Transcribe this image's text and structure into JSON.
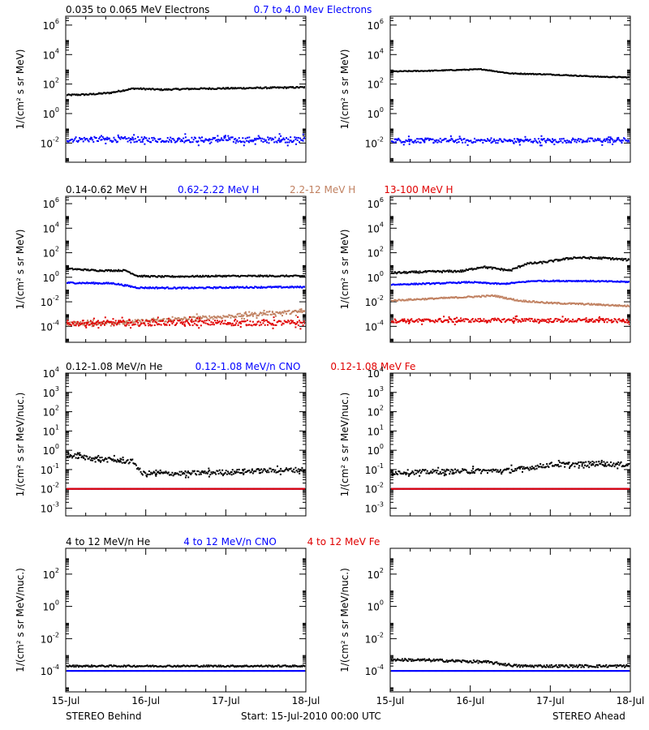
{
  "chart_data": [
    {
      "type": "scatter",
      "panel": "electrons-behind",
      "title_series": [
        {
          "name": "0.035 to 0.065 MeV Electrons",
          "color": "#000000"
        },
        {
          "name": "0.7 to 4.0 Mev Electrons",
          "color": "#0000ff"
        }
      ],
      "ylabel": "1/(cm² s sr MeV)",
      "yscale": "log",
      "ylim_exp": [
        -3.3,
        6.6
      ],
      "ytick_exps": [
        -2,
        0,
        2,
        4,
        6
      ],
      "series": [
        {
          "name": "0.035 to 0.065 MeV Electrons",
          "color": "#000000",
          "scatter": 0.05,
          "points": [
            [
              0,
              1.25
            ],
            [
              0.3,
              1.3
            ],
            [
              0.55,
              1.4
            ],
            [
              0.85,
              1.7
            ],
            [
              1.2,
              1.62
            ],
            [
              1.6,
              1.68
            ],
            [
              2.2,
              1.72
            ],
            [
              2.6,
              1.75
            ],
            [
              3.0,
              1.78
            ]
          ]
        },
        {
          "name": "0.7 to 4.0 Mev Electrons",
          "color": "#0000ff",
          "scatter": 0.18,
          "points": [
            [
              0,
              -1.75
            ],
            [
              1.5,
              -1.78
            ],
            [
              3.0,
              -1.78
            ]
          ]
        }
      ]
    },
    {
      "type": "scatter",
      "panel": "electrons-ahead",
      "ylabel": "1/(cm² s sr MeV)",
      "yscale": "log",
      "ylim_exp": [
        -3.3,
        6.6
      ],
      "ytick_exps": [
        -2,
        0,
        2,
        4,
        6
      ],
      "series": [
        {
          "name": "0.035 to 0.065 MeV Electrons",
          "color": "#000000",
          "scatter": 0.03,
          "points": [
            [
              0,
              2.85
            ],
            [
              0.5,
              2.9
            ],
            [
              0.8,
              2.95
            ],
            [
              1.15,
              3.0
            ],
            [
              1.5,
              2.72
            ],
            [
              2.0,
              2.65
            ],
            [
              2.6,
              2.5
            ],
            [
              3.0,
              2.45
            ]
          ]
        },
        {
          "name": "0.7 to 4.0 Mev Electrons",
          "color": "#0000ff",
          "scatter": 0.15,
          "points": [
            [
              0,
              -1.82
            ],
            [
              1.5,
              -1.85
            ],
            [
              3.0,
              -1.8
            ]
          ]
        }
      ]
    },
    {
      "type": "scatter",
      "panel": "protons-behind",
      "title_series": [
        {
          "name": "0.14-0.62 MeV H",
          "color": "#000000"
        },
        {
          "name": "0.62-2.22 MeV H",
          "color": "#0000ff"
        },
        {
          "name": "2.2-12 MeV H",
          "color": "#c08060"
        },
        {
          "name": "13-100 MeV H",
          "color": "#e00000"
        }
      ],
      "ylabel": "1/(cm² s sr MeV)",
      "yscale": "log",
      "ylim_exp": [
        -5.3,
        6.6
      ],
      "ytick_exps": [
        -4,
        -2,
        0,
        2,
        4,
        6
      ],
      "series": [
        {
          "name": "0.14-0.62 MeV H",
          "color": "#000000",
          "scatter": 0.06,
          "points": [
            [
              0,
              0.7
            ],
            [
              0.4,
              0.55
            ],
            [
              0.75,
              0.55
            ],
            [
              0.9,
              0.1
            ],
            [
              1.2,
              0.05
            ],
            [
              2.0,
              0.1
            ],
            [
              3.0,
              0.1
            ]
          ]
        },
        {
          "name": "0.62-2.22 MeV H",
          "color": "#0000ff",
          "scatter": 0.06,
          "points": [
            [
              0,
              -0.45
            ],
            [
              0.6,
              -0.5
            ],
            [
              0.9,
              -0.85
            ],
            [
              1.5,
              -0.88
            ],
            [
              2.2,
              -0.82
            ],
            [
              3.0,
              -0.8
            ]
          ]
        },
        {
          "name": "2.2-12 MeV H",
          "color": "#c08060",
          "scatter": 0.15,
          "points": [
            [
              0,
              -3.8
            ],
            [
              0.6,
              -3.7
            ],
            [
              1.2,
              -3.5
            ],
            [
              2.0,
              -3.2
            ],
            [
              2.6,
              -2.9
            ],
            [
              3.0,
              -2.8
            ]
          ]
        },
        {
          "name": "13-100 MeV H",
          "color": "#e00000",
          "scatter": 0.22,
          "points": [
            [
              0,
              -3.75
            ],
            [
              1.5,
              -3.72
            ],
            [
              3.0,
              -3.72
            ]
          ]
        }
      ]
    },
    {
      "type": "scatter",
      "panel": "protons-ahead",
      "ylabel": "1/(cm² s sr MeV)",
      "yscale": "log",
      "ylim_exp": [
        -5.3,
        6.6
      ],
      "ytick_exps": [
        -4,
        -2,
        0,
        2,
        4,
        6
      ],
      "series": [
        {
          "name": "0.14-0.62 MeV H",
          "color": "#000000",
          "scatter": 0.08,
          "points": [
            [
              0,
              0.35
            ],
            [
              0.5,
              0.45
            ],
            [
              0.9,
              0.5
            ],
            [
              1.15,
              0.85
            ],
            [
              1.5,
              0.55
            ],
            [
              1.7,
              1.1
            ],
            [
              1.9,
              1.2
            ],
            [
              2.3,
              1.6
            ],
            [
              2.7,
              1.55
            ],
            [
              3.0,
              1.4
            ]
          ]
        },
        {
          "name": "0.62-2.22 MeV H",
          "color": "#0000ff",
          "scatter": 0.05,
          "points": [
            [
              0,
              -0.6
            ],
            [
              0.6,
              -0.5
            ],
            [
              1.0,
              -0.4
            ],
            [
              1.4,
              -0.55
            ],
            [
              1.8,
              -0.3
            ],
            [
              2.4,
              -0.3
            ],
            [
              3.0,
              -0.38
            ]
          ]
        },
        {
          "name": "2.2-12 MeV H",
          "color": "#c08060",
          "scatter": 0.06,
          "points": [
            [
              0,
              -1.9
            ],
            [
              0.5,
              -1.75
            ],
            [
              1.0,
              -1.6
            ],
            [
              1.3,
              -1.5
            ],
            [
              1.6,
              -1.9
            ],
            [
              2.0,
              -2.1
            ],
            [
              2.5,
              -2.2
            ],
            [
              3.0,
              -2.35
            ]
          ]
        },
        {
          "name": "13-100 MeV H",
          "color": "#e00000",
          "scatter": 0.15,
          "points": [
            [
              0,
              -3.55
            ],
            [
              1.5,
              -3.5
            ],
            [
              3.0,
              -3.55
            ]
          ]
        }
      ]
    },
    {
      "type": "scatter",
      "panel": "heavy-low-behind",
      "title_series": [
        {
          "name": "0.12-1.08 MeV/n He",
          "color": "#000000"
        },
        {
          "name": "0.12-1.08 MeV/n CNO",
          "color": "#0000ff"
        },
        {
          "name": "0.12-1.08 MeV Fe",
          "color": "#e00000"
        }
      ],
      "ylabel": "1/(cm² s sr MeV/nuc.)",
      "yscale": "log",
      "ylim_exp": [
        -3.4,
        4.0
      ],
      "ytick_exps": [
        -3,
        -2,
        -1,
        0,
        1,
        2,
        3,
        4
      ],
      "series": [
        {
          "name": "0.12-1.08 MeV/n He",
          "color": "#000000",
          "scatter": 0.12,
          "points": [
            [
              0,
              -0.25
            ],
            [
              0.4,
              -0.45
            ],
            [
              0.85,
              -0.6
            ],
            [
              0.95,
              -1.2
            ],
            [
              1.5,
              -1.2
            ],
            [
              2.2,
              -1.1
            ],
            [
              3.0,
              -1.0
            ]
          ]
        },
        {
          "name": "0.12-1.08 MeV/n CNO",
          "color": "#0000ff",
          "scatter": 0.0,
          "points": [
            [
              0,
              -2.0
            ],
            [
              3.0,
              -2.0
            ]
          ]
        },
        {
          "name": "0.12-1.08 MeV Fe",
          "color": "#e00000",
          "scatter": 0.0,
          "points": [
            [
              0,
              -2.0
            ],
            [
              3.0,
              -2.0
            ]
          ]
        }
      ]
    },
    {
      "type": "scatter",
      "panel": "heavy-low-ahead",
      "ylabel": "1/(cm² s sr MeV/nuc.)",
      "yscale": "log",
      "ylim_exp": [
        -3.4,
        4.0
      ],
      "ytick_exps": [
        -3,
        -2,
        -1,
        0,
        1,
        2,
        3,
        4
      ],
      "series": [
        {
          "name": "0.12-1.08 MeV/n He",
          "color": "#000000",
          "scatter": 0.12,
          "points": [
            [
              0,
              -1.15
            ],
            [
              0.8,
              -1.1
            ],
            [
              1.5,
              -1.05
            ],
            [
              2.0,
              -0.75
            ],
            [
              2.6,
              -0.7
            ],
            [
              3.0,
              -0.75
            ]
          ]
        },
        {
          "name": "0.12-1.08 MeV/n CNO",
          "color": "#0000ff",
          "scatter": 0.0,
          "points": [
            [
              0,
              -2.0
            ],
            [
              3.0,
              -2.0
            ]
          ]
        },
        {
          "name": "0.12-1.08 MeV Fe",
          "color": "#e00000",
          "scatter": 0.0,
          "points": [
            [
              0,
              -2.0
            ],
            [
              3.0,
              -2.0
            ]
          ]
        }
      ]
    },
    {
      "type": "scatter",
      "panel": "heavy-high-behind",
      "title_series": [
        {
          "name": "4 to 12 MeV/n He",
          "color": "#000000"
        },
        {
          "name": "4 to 12 MeV/n CNO",
          "color": "#0000ff"
        },
        {
          "name": "4 to 12 MeV Fe",
          "color": "#e00000"
        }
      ],
      "ylabel": "1/(cm² s sr MeV/nuc.)",
      "yscale": "log",
      "ylim_exp": [
        -5.3,
        3.6
      ],
      "ytick_exps": [
        -4,
        -2,
        0,
        2
      ],
      "series": [
        {
          "name": "4 to 12 MeV/n He",
          "color": "#000000",
          "scatter": 0.05,
          "points": [
            [
              0,
              -3.7
            ],
            [
              3.0,
              -3.7
            ]
          ]
        },
        {
          "name": "4 to 12 MeV/n CNO",
          "color": "#0000ff",
          "scatter": 0.0,
          "points": [
            [
              0,
              -4.0
            ],
            [
              3.0,
              -4.0
            ]
          ]
        }
      ]
    },
    {
      "type": "scatter",
      "panel": "heavy-high-ahead",
      "ylabel": "1/(cm² s sr MeV/nuc.)",
      "yscale": "log",
      "ylim_exp": [
        -5.3,
        3.6
      ],
      "ytick_exps": [
        -4,
        -2,
        0,
        2
      ],
      "series": [
        {
          "name": "4 to 12 MeV/n He",
          "color": "#000000",
          "scatter": 0.08,
          "points": [
            [
              0,
              -3.3
            ],
            [
              0.6,
              -3.35
            ],
            [
              1.2,
              -3.45
            ],
            [
              1.6,
              -3.7
            ],
            [
              3.0,
              -3.7
            ]
          ]
        },
        {
          "name": "4 to 12 MeV/n CNO",
          "color": "#0000ff",
          "scatter": 0.0,
          "points": [
            [
              0,
              -4.0
            ],
            [
              3.0,
              -4.0
            ]
          ]
        }
      ]
    }
  ],
  "x_axis": {
    "xlim": [
      0,
      3
    ],
    "tick_labels": [
      "15-Jul",
      "16-Jul",
      "17-Jul",
      "18-Jul"
    ]
  },
  "footer": {
    "left": "STEREO Behind",
    "center": "Start: 15-Jul-2010 00:00 UTC",
    "right": "STEREO Ahead"
  }
}
